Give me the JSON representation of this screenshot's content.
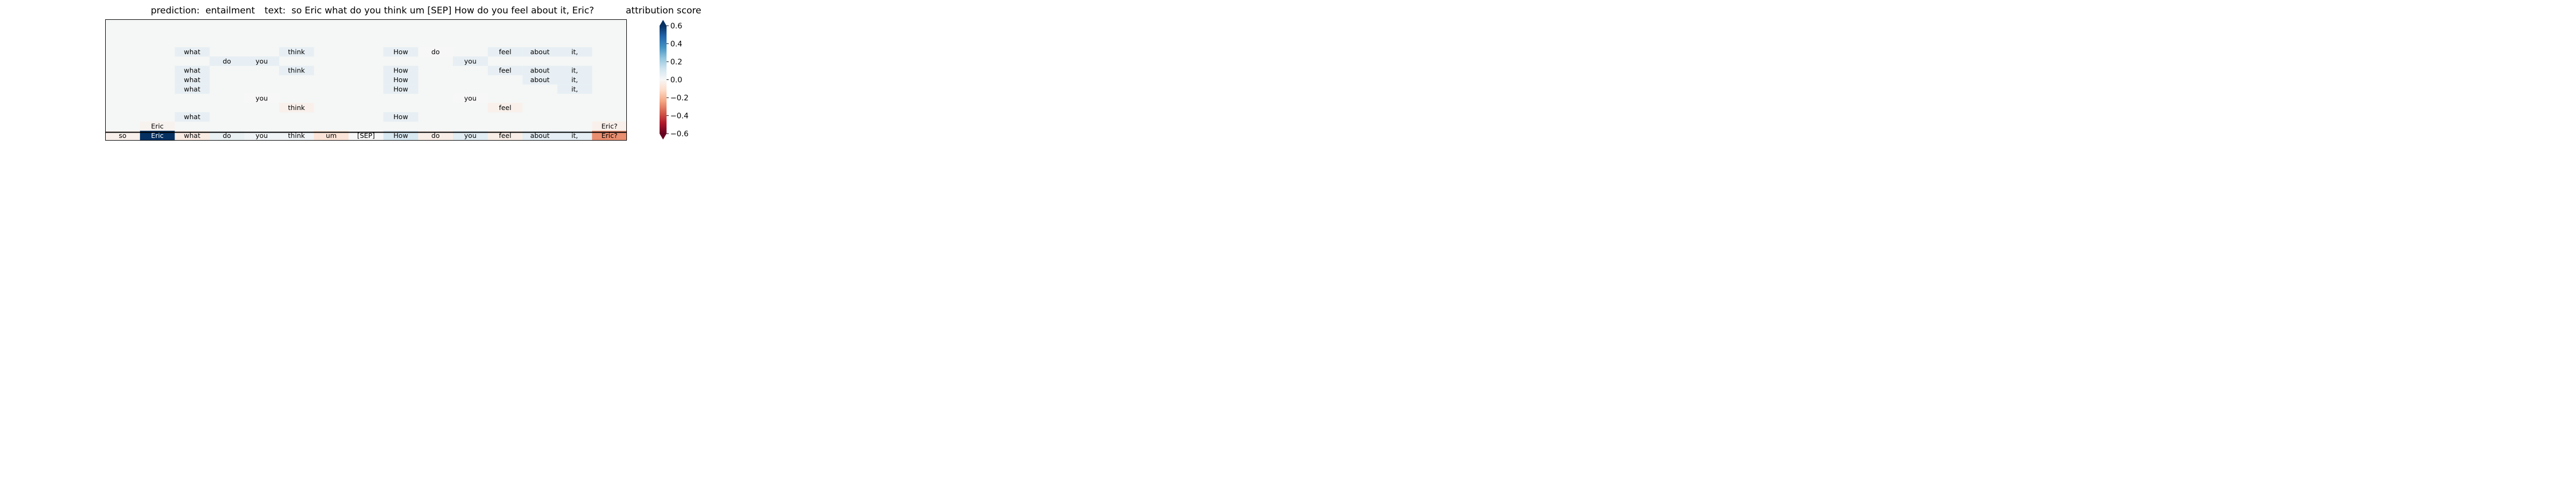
{
  "header": {
    "prediction": "prediction:  entailment",
    "text": "text:  so Eric what do you think um [SEP] How do you feel about it, Eric?",
    "colorbar_title": "attribution score"
  },
  "chart_data": {
    "type": "heatmap",
    "title": "prediction:  entailment     text:  so Eric what do you think um [SEP] How do you feel about it, Eric?",
    "tokens": [
      "so",
      "Eric",
      "what",
      "do",
      "you",
      "think",
      "um",
      "[SEP]",
      "How",
      "do",
      "you",
      "feel",
      "about",
      "it,",
      "Eric?"
    ],
    "bottom_row_scores": [
      -0.03,
      0.62,
      -0.05,
      0.04,
      0.02,
      0.02,
      -0.08,
      0.0,
      0.1,
      -0.04,
      0.07,
      -0.04,
      0.06,
      0.06,
      -0.28
    ],
    "rows": [
      {
        "cells": []
      },
      {
        "cells": []
      },
      {
        "cells": []
      },
      {
        "cells": [
          [
            2,
            0.05
          ],
          [
            5,
            0.05
          ],
          [
            8,
            0.05
          ],
          [
            9,
            0.0
          ],
          [
            11,
            0.05
          ],
          [
            12,
            0.05
          ],
          [
            13,
            0.05
          ]
        ]
      },
      {
        "cells": [
          [
            3,
            0.05
          ],
          [
            4,
            0.05
          ],
          [
            10,
            0.05
          ]
        ]
      },
      {
        "cells": [
          [
            2,
            0.05
          ],
          [
            5,
            0.05
          ],
          [
            8,
            0.05
          ],
          [
            11,
            0.05
          ],
          [
            12,
            0.05
          ],
          [
            13,
            0.05
          ]
        ]
      },
      {
        "cells": [
          [
            2,
            0.05
          ],
          [
            8,
            0.05
          ],
          [
            12,
            0.05
          ],
          [
            13,
            0.05
          ]
        ]
      },
      {
        "cells": [
          [
            2,
            0.05
          ],
          [
            8,
            0.05
          ],
          [
            13,
            0.05
          ]
        ]
      },
      {
        "cells": [
          [
            4,
            0.0
          ],
          [
            10,
            0.0
          ]
        ]
      },
      {
        "cells": [
          [
            5,
            -0.03
          ],
          [
            11,
            -0.03
          ]
        ]
      },
      {
        "cells": [
          [
            2,
            0.05
          ],
          [
            8,
            0.05
          ]
        ]
      },
      {
        "cells": [
          [
            1,
            -0.02
          ],
          [
            14,
            -0.03
          ]
        ]
      }
    ],
    "colorbar": {
      "label": "attribution score",
      "range": [
        -0.6,
        0.6
      ],
      "extend": "both",
      "ticks": [
        -0.6,
        -0.4,
        -0.2,
        0.0,
        0.2,
        0.4,
        0.6
      ],
      "tick_labels": [
        "−0.6",
        "−0.4",
        "−0.2",
        "0.0",
        "0.2",
        "0.4",
        "0.6"
      ],
      "colormap": "RdBu",
      "colors": {
        "neg_end": "#67001f",
        "neg_2": "#b2182b",
        "neg_3": "#d6604d",
        "neg_4": "#f4a582",
        "neg_5": "#fddbc7",
        "mid": "#f7f7f7",
        "pos_5": "#d1e5f0",
        "pos_4": "#92c5de",
        "pos_3": "#4393c3",
        "pos_2": "#2166ac",
        "pos_end": "#053061"
      }
    },
    "background_color": "#f5f7f6"
  }
}
